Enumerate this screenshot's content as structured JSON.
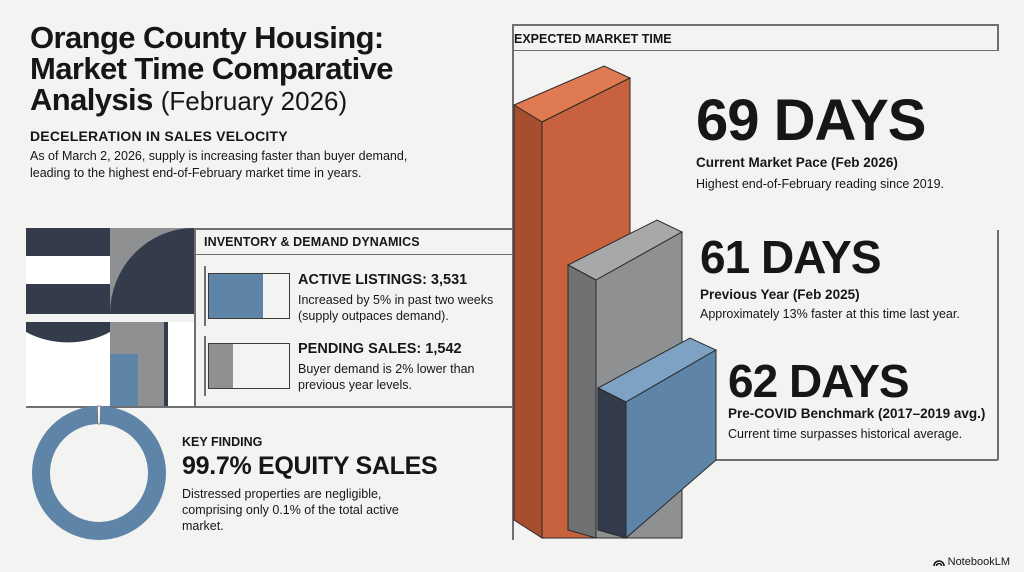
{
  "title": {
    "line1": "Orange County Housing:",
    "line2": "Market Time Comparative",
    "line3": "Analysis",
    "subtitle": "(February 2026)"
  },
  "deceleration": {
    "heading": "DECELERATION IN SALES VELOCITY",
    "text": "As of March 2, 2026, supply is increasing faster than buyer demand, leading to the highest end-of-February market time in years."
  },
  "inventory": {
    "heading": "INVENTORY & DEMAND DYNAMICS",
    "active": {
      "title": "ACTIVE LISTINGS: 3,531",
      "desc": "Increased by 5% in past two weeks (supply outpaces demand).",
      "fill_fraction": 0.68,
      "color": "#5e84a8"
    },
    "pending": {
      "title": "PENDING SALES: 1,542",
      "desc": "Buyer demand is 2% lower than previous year levels.",
      "fill_fraction": 0.3,
      "color": "#8e9091"
    }
  },
  "key_finding": {
    "heading": "KEY FINDING",
    "value": "99.7% EQUITY SALES",
    "text": "Distressed properties are negligible, comprising only 0.1% of the total active market.",
    "equity_fraction": 0.997,
    "ring_color": "#5e84a8"
  },
  "market_time": {
    "heading": "EXPECTED MARKET TIME",
    "current": {
      "value": "69 DAYS",
      "label": "Current Market Pace (Feb 2026)",
      "note": "Highest end-of-February reading since 2019.",
      "days": 69,
      "color": "#c8623e"
    },
    "previous": {
      "value": "61 DAYS",
      "label": "Previous Year (Feb 2025)",
      "note": "Approximately 13% faster at this time last year.",
      "days": 61,
      "color": "#8e9091"
    },
    "benchmark": {
      "value": "62 DAYS",
      "label": "Pre-COVID Benchmark (2017–2019 avg.)",
      "note": "Current time surpasses historical average.",
      "days": 62,
      "color": "#5e84a8"
    }
  },
  "brand": {
    "name": "NotebookLM",
    "icon": "notebooklm-logo-icon"
  }
}
